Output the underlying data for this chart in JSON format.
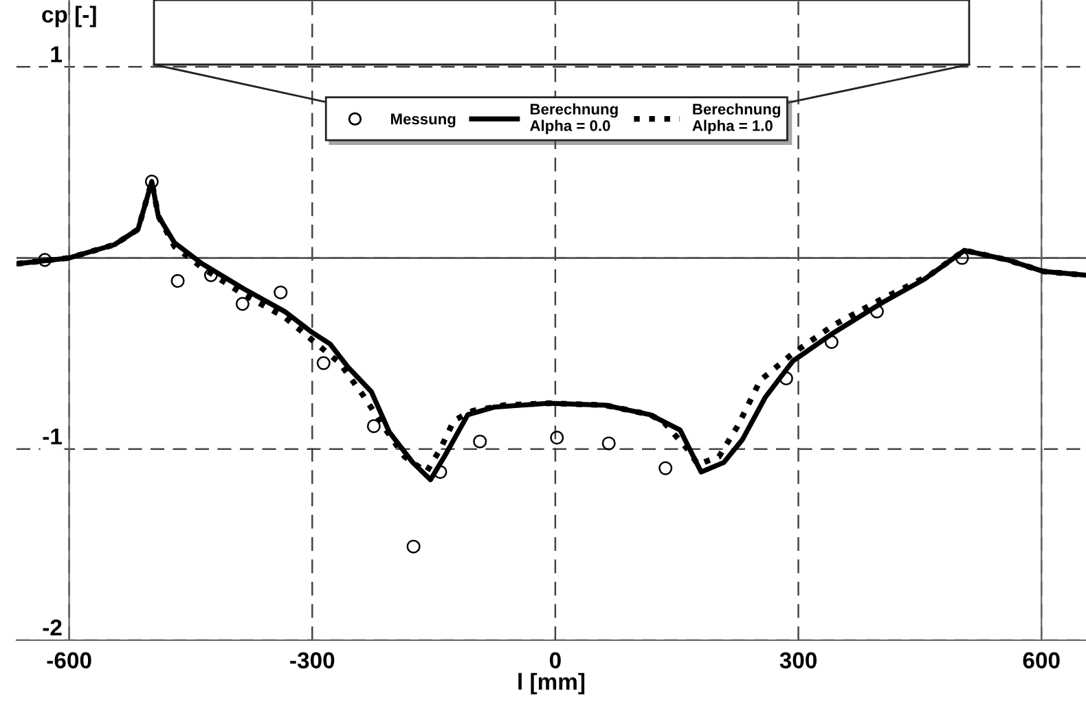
{
  "chart_data": {
    "type": "line",
    "xlabel": "l [mm]",
    "ylabel": "cp [-]",
    "xlim": [
      -665,
      655
    ],
    "ylim": [
      -2,
      1.35
    ],
    "xticks": [
      -600,
      -300,
      0,
      300,
      600
    ],
    "yticks": [
      1,
      {
        "value": 0,
        "label": null
      },
      -1,
      -2
    ],
    "grid": true,
    "legend": "top",
    "ref_lines": [
      {
        "axis": "y",
        "value": 0,
        "label": null,
        "color": "#555555",
        "line_style": "solid"
      }
    ],
    "series": [
      {
        "name": "Messung",
        "type": "scatter",
        "color": "#000000",
        "marker": "circle",
        "x": [
          -630,
          -498,
          -466,
          -425,
          -386,
          -339,
          -286,
          -224,
          -175,
          -142,
          -93,
          2,
          66,
          136,
          285,
          341,
          397,
          502
        ],
        "values": [
          -0.01,
          0.4,
          -0.12,
          -0.09,
          -0.24,
          -0.18,
          -0.55,
          -0.88,
          -1.51,
          -1.12,
          -0.96,
          -0.94,
          -0.97,
          -1.1,
          -0.63,
          -0.44,
          -0.28,
          0.0
        ]
      },
      {
        "name": "Berechnung\nAlpha = 0.0",
        "color": "#000000",
        "line_style": "solid",
        "x": [
          -664,
          -600,
          -544,
          -515,
          -498,
          -490,
          -470,
          -436,
          -385,
          -334,
          -300,
          -278,
          -256,
          -227,
          -205,
          -176,
          -154,
          -137,
          -108,
          -75,
          -7,
          61,
          117,
          154,
          180,
          208,
          231,
          259,
          293,
          344,
          405,
          456,
          505,
          558,
          602,
          654
        ],
        "values": [
          -0.03,
          0.0,
          0.07,
          0.15,
          0.4,
          0.22,
          0.08,
          -0.03,
          -0.16,
          -0.28,
          -0.39,
          -0.45,
          -0.57,
          -0.7,
          -0.91,
          -1.07,
          -1.16,
          -1.04,
          -0.82,
          -0.78,
          -0.76,
          -0.77,
          -0.82,
          -0.9,
          -1.12,
          -1.07,
          -0.95,
          -0.73,
          -0.54,
          -0.39,
          -0.23,
          -0.11,
          0.04,
          -0.01,
          -0.07,
          -0.09
        ]
      },
      {
        "name": "Berechnung\nAlpha = 1.0",
        "color": "#000000",
        "line_style": "dotted",
        "x": [
          -664,
          -600,
          -544,
          -515,
          -498,
          -490,
          -470,
          -436,
          -385,
          -334,
          -300,
          -266,
          -237,
          -209,
          -186,
          -159,
          -142,
          -125,
          -102,
          -63,
          -7,
          61,
          117,
          134,
          163,
          176,
          202,
          225,
          253,
          293,
          344,
          405,
          462,
          505,
          558,
          602,
          654
        ],
        "values": [
          -0.03,
          0.0,
          0.07,
          0.15,
          0.4,
          0.22,
          0.06,
          -0.05,
          -0.19,
          -0.31,
          -0.43,
          -0.55,
          -0.72,
          -0.9,
          -1.04,
          -1.12,
          -1.0,
          -0.85,
          -0.8,
          -0.77,
          -0.76,
          -0.77,
          -0.82,
          -0.86,
          -1.0,
          -1.08,
          -1.04,
          -0.88,
          -0.64,
          -0.5,
          -0.35,
          -0.21,
          -0.09,
          0.04,
          -0.01,
          -0.07,
          -0.09
        ]
      }
    ]
  }
}
